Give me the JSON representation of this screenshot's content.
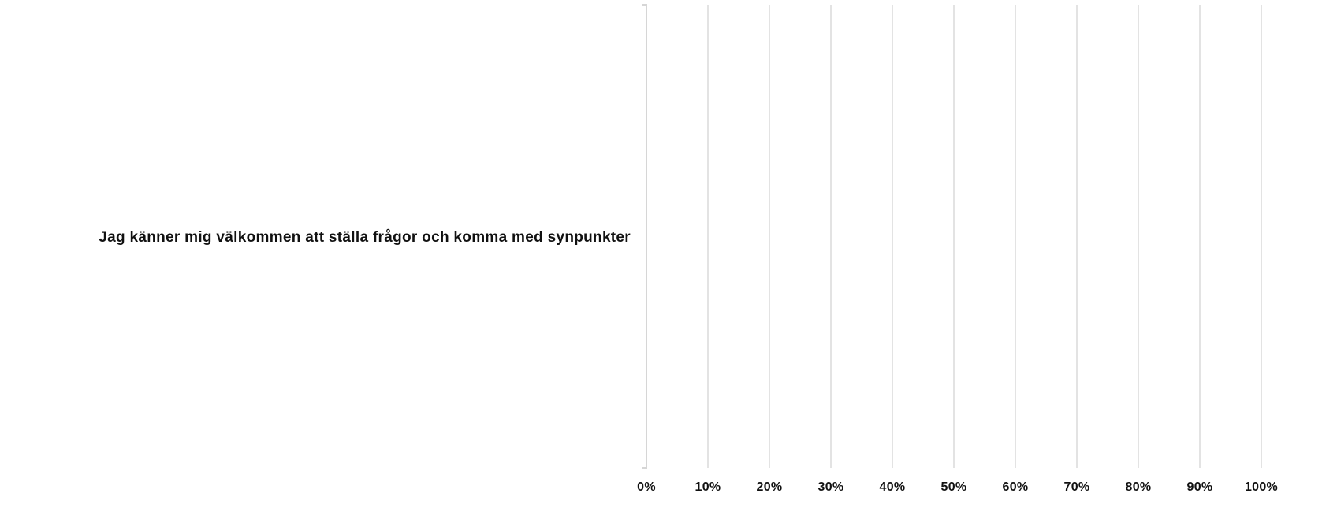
{
  "chart_data": {
    "type": "bar",
    "orientation": "horizontal",
    "stacked": true,
    "categories": [
      "Jag känner mig välkommen att ställa frågor och komma med synpunkter"
    ],
    "series": [],
    "xlim": [
      0,
      100
    ],
    "x_ticks": [
      0,
      10,
      20,
      30,
      40,
      50,
      60,
      70,
      80,
      90,
      100
    ],
    "x_tick_labels": [
      "0%",
      "10%",
      "20%",
      "30%",
      "40%",
      "50%",
      "60%",
      "70%",
      "80%",
      "90%",
      "100%"
    ],
    "grid": true,
    "legend": "none"
  }
}
